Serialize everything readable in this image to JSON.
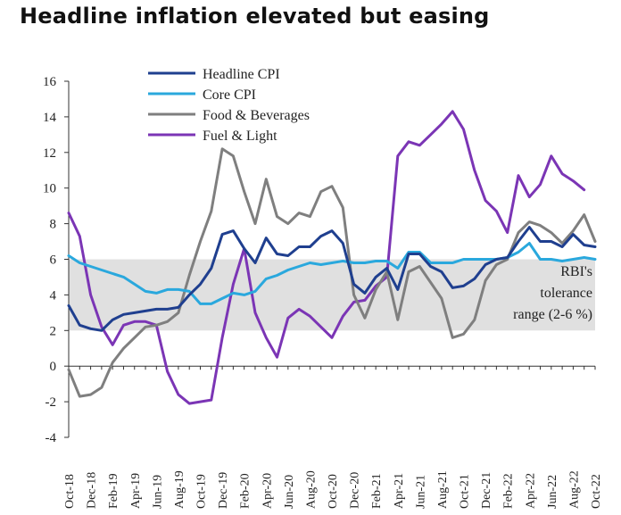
{
  "title": "Headline inflation elevated but easing",
  "chart_data": {
    "type": "line",
    "ylim": [
      -4,
      16
    ],
    "yticks": [
      -4,
      -2,
      0,
      2,
      4,
      6,
      8,
      10,
      12,
      14,
      16
    ],
    "x_count": 49,
    "xtick_labels": [
      "Oct-18",
      "Dec-18",
      "Feb-19",
      "Apr-19",
      "Jun-19",
      "Aug-19",
      "Oct-19",
      "Dec-19",
      "Feb-20",
      "Apr-20",
      "Jun-20",
      "Aug-20",
      "Oct-20",
      "Dec-20",
      "Feb-21",
      "Apr-21",
      "Jun-21",
      "Aug-21",
      "Oct-21",
      "Dec-21",
      "Feb-22",
      "Apr-22",
      "Jun-22",
      "Aug-22",
      "Oct-22"
    ],
    "band": {
      "from": 2,
      "to": 6,
      "label_lines": [
        "RBI's",
        "tolerance",
        "range (2-6 %)"
      ],
      "color": "#e0e0e0"
    },
    "grid": false,
    "legend_position": "top-left",
    "series": [
      {
        "name": "Headline CPI",
        "color": "#1f3f8f",
        "values": [
          3.4,
          2.3,
          2.1,
          2.0,
          2.6,
          2.9,
          3.0,
          3.1,
          3.2,
          3.2,
          3.3,
          4.0,
          4.6,
          5.5,
          7.4,
          7.6,
          6.6,
          5.8,
          7.2,
          6.3,
          6.2,
          6.7,
          6.7,
          7.3,
          7.6,
          6.9,
          4.6,
          4.1,
          5.0,
          5.5,
          4.3,
          6.3,
          6.3,
          5.6,
          5.3,
          4.4,
          4.5,
          4.9,
          5.7,
          6.0,
          6.1,
          7.0,
          7.8,
          7.0,
          7.0,
          6.7,
          7.4,
          6.8,
          6.7
        ]
      },
      {
        "name": "Core CPI",
        "color": "#2aa8dd",
        "values": [
          6.2,
          5.8,
          5.6,
          5.4,
          5.2,
          5.0,
          4.6,
          4.2,
          4.1,
          4.3,
          4.3,
          4.2,
          3.5,
          3.5,
          3.8,
          4.1,
          4.0,
          4.2,
          4.9,
          5.1,
          5.4,
          5.6,
          5.8,
          5.7,
          5.8,
          5.9,
          5.8,
          5.8,
          5.9,
          5.9,
          5.5,
          6.4,
          6.4,
          5.8,
          5.8,
          5.8,
          6.0,
          6.0,
          6.0,
          6.0,
          6.1,
          6.4,
          6.9,
          6.0,
          6.0,
          5.9,
          6.0,
          6.1,
          6.0
        ]
      },
      {
        "name": "Food & Beverages",
        "color": "#7f7f7f",
        "values": [
          -0.2,
          -1.7,
          -1.6,
          -1.2,
          0.2,
          1.0,
          1.6,
          2.2,
          2.3,
          2.5,
          3.0,
          5.1,
          7.0,
          8.7,
          12.2,
          11.8,
          9.8,
          8.0,
          10.5,
          8.4,
          8.0,
          8.6,
          8.4,
          9.8,
          10.1,
          8.9,
          4.0,
          2.7,
          4.3,
          5.3,
          2.6,
          5.3,
          5.6,
          4.7,
          3.8,
          1.6,
          1.8,
          2.6,
          4.8,
          5.7,
          6.0,
          7.5,
          8.1,
          7.9,
          7.5,
          6.9,
          7.6,
          8.5,
          7.0
        ]
      },
      {
        "name": "Fuel & Light",
        "color": "#7b35b5",
        "values": [
          8.6,
          7.3,
          4.0,
          2.2,
          1.2,
          2.3,
          2.5,
          2.5,
          2.3,
          -0.3,
          -1.6,
          -2.1,
          -2.0,
          -1.9,
          1.6,
          4.6,
          6.6,
          3.0,
          1.6,
          0.5,
          2.7,
          3.2,
          2.8,
          2.2,
          1.6,
          2.8,
          3.6,
          3.7,
          4.5,
          5.0,
          11.8,
          12.6,
          12.4,
          13.0,
          13.6,
          14.3,
          13.3,
          11.0,
          9.3,
          8.7,
          7.5,
          10.7,
          9.5,
          10.2,
          11.8,
          10.8,
          10.4,
          9.9,
          null
        ]
      }
    ]
  }
}
